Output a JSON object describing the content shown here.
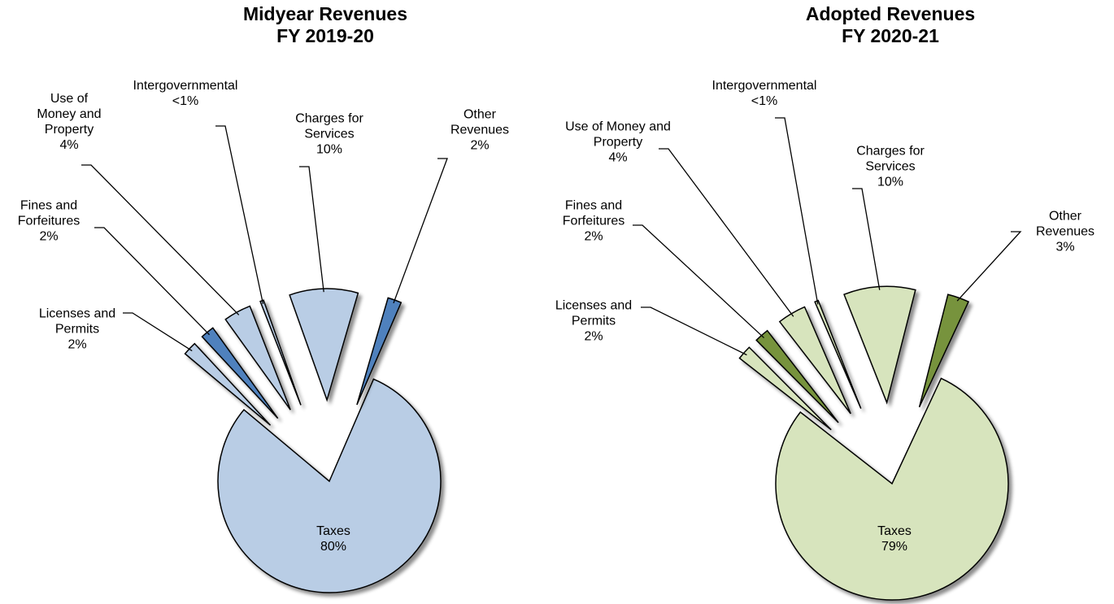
{
  "chart_data": [
    {
      "type": "pie",
      "title": "Midyear Revenues",
      "subtitle": "FY 2019-20",
      "categories": [
        "Taxes",
        "Licenses and Permits",
        "Fines and Forfeitures",
        "Use of Money and Property",
        "Intergovernmental",
        "Charges for Services",
        "Other Revenues"
      ],
      "values": [
        80,
        2,
        2,
        4,
        0.5,
        10,
        2
      ],
      "value_labels": [
        "80%",
        "2%",
        "2%",
        "4%",
        "<1%",
        "10%",
        "2%"
      ],
      "colors": [
        "#b9cde5",
        "#b9cde5",
        "#4f81bd",
        "#b9cde5",
        "#b9cde5",
        "#b9cde5",
        "#4f81bd"
      ]
    },
    {
      "type": "pie",
      "title": "Adopted Revenues",
      "subtitle": "FY 2020-21",
      "categories": [
        "Taxes",
        "Licenses and Permits",
        "Fines and Forfeitures",
        "Use of Money and Property",
        "Intergovernmental",
        "Charges for Services",
        "Other Revenues"
      ],
      "values": [
        79,
        2,
        2,
        4,
        0.5,
        10,
        3
      ],
      "value_labels": [
        "79%",
        "2%",
        "2%",
        "4%",
        "<1%",
        "10%",
        "3%"
      ],
      "colors": [
        "#d7e4bd",
        "#d7e4bd",
        "#77933c",
        "#d7e4bd",
        "#d7e4bd",
        "#d7e4bd",
        "#77933c"
      ]
    }
  ]
}
